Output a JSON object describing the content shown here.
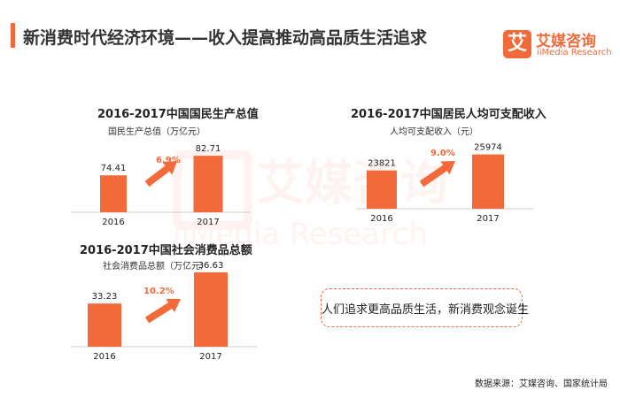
{
  "header": {
    "title": "新消费时代经济环境——收入提高推动高品质生活追求",
    "brand_cn": "艾媒咨询",
    "brand_en": "iiMedia Research",
    "brand_mark": "艾"
  },
  "watermark": {
    "cn": "艾媒咨询",
    "en": "iiMedia Research"
  },
  "colors": {
    "accent": "#f26a3a",
    "bar": "#f26a3a",
    "arrow": "#f26a3a"
  },
  "chart_data": [
    {
      "type": "bar",
      "title": "2016-2017中国国民生产总值",
      "ylabel": "国民生产总值（万亿元）",
      "categories": [
        "2016",
        "2017"
      ],
      "values": [
        74.41,
        82.71
      ],
      "value_labels": [
        "74.41",
        "82.71"
      ],
      "growth_label": "6.9%",
      "ylim": [
        70,
        85
      ]
    },
    {
      "type": "bar",
      "title": "2016-2017中国居民人均可支配收入",
      "ylabel": "人均可支配收入（元）",
      "categories": [
        "2016",
        "2017"
      ],
      "values": [
        23821,
        25974
      ],
      "value_labels": [
        "23821",
        "25974"
      ],
      "growth_label": "9.0%",
      "ylim": [
        22000,
        27000
      ]
    },
    {
      "type": "bar",
      "title": "2016-2017中国社会消费品总额",
      "ylabel": "社会消费品总额（万亿元）",
      "categories": [
        "2016",
        "2017"
      ],
      "values": [
        33.23,
        36.63
      ],
      "value_labels": [
        "33.23",
        "36.63"
      ],
      "growth_label": "10.2%",
      "ylim": [
        32,
        37
      ]
    }
  ],
  "callout": "人们追求更高品质生活，新消费观念诞生",
  "footer": {
    "source": "数据来源：艾媒咨询、国家统计局"
  }
}
